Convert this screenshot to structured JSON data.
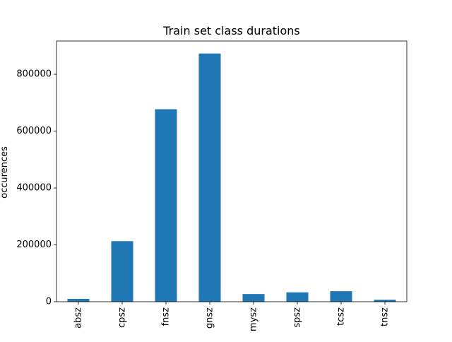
{
  "chart_data": {
    "type": "bar",
    "title": "Train set class durations",
    "xlabel": "",
    "ylabel": "occurences",
    "categories": [
      "absz",
      "cpsz",
      "fnsz",
      "gnsz",
      "mysz",
      "spsz",
      "tcsz",
      "tnsz"
    ],
    "values": [
      10000,
      213000,
      677000,
      873000,
      27000,
      33000,
      37000,
      7000
    ],
    "ylim": [
      0,
      917000
    ],
    "yticks": [
      0,
      200000,
      400000,
      600000,
      800000
    ],
    "ytick_labels": [
      "0",
      "200000",
      "400000",
      "600000",
      "800000"
    ],
    "grid": false,
    "legend": "none",
    "bar_color": "#1f77b4"
  }
}
